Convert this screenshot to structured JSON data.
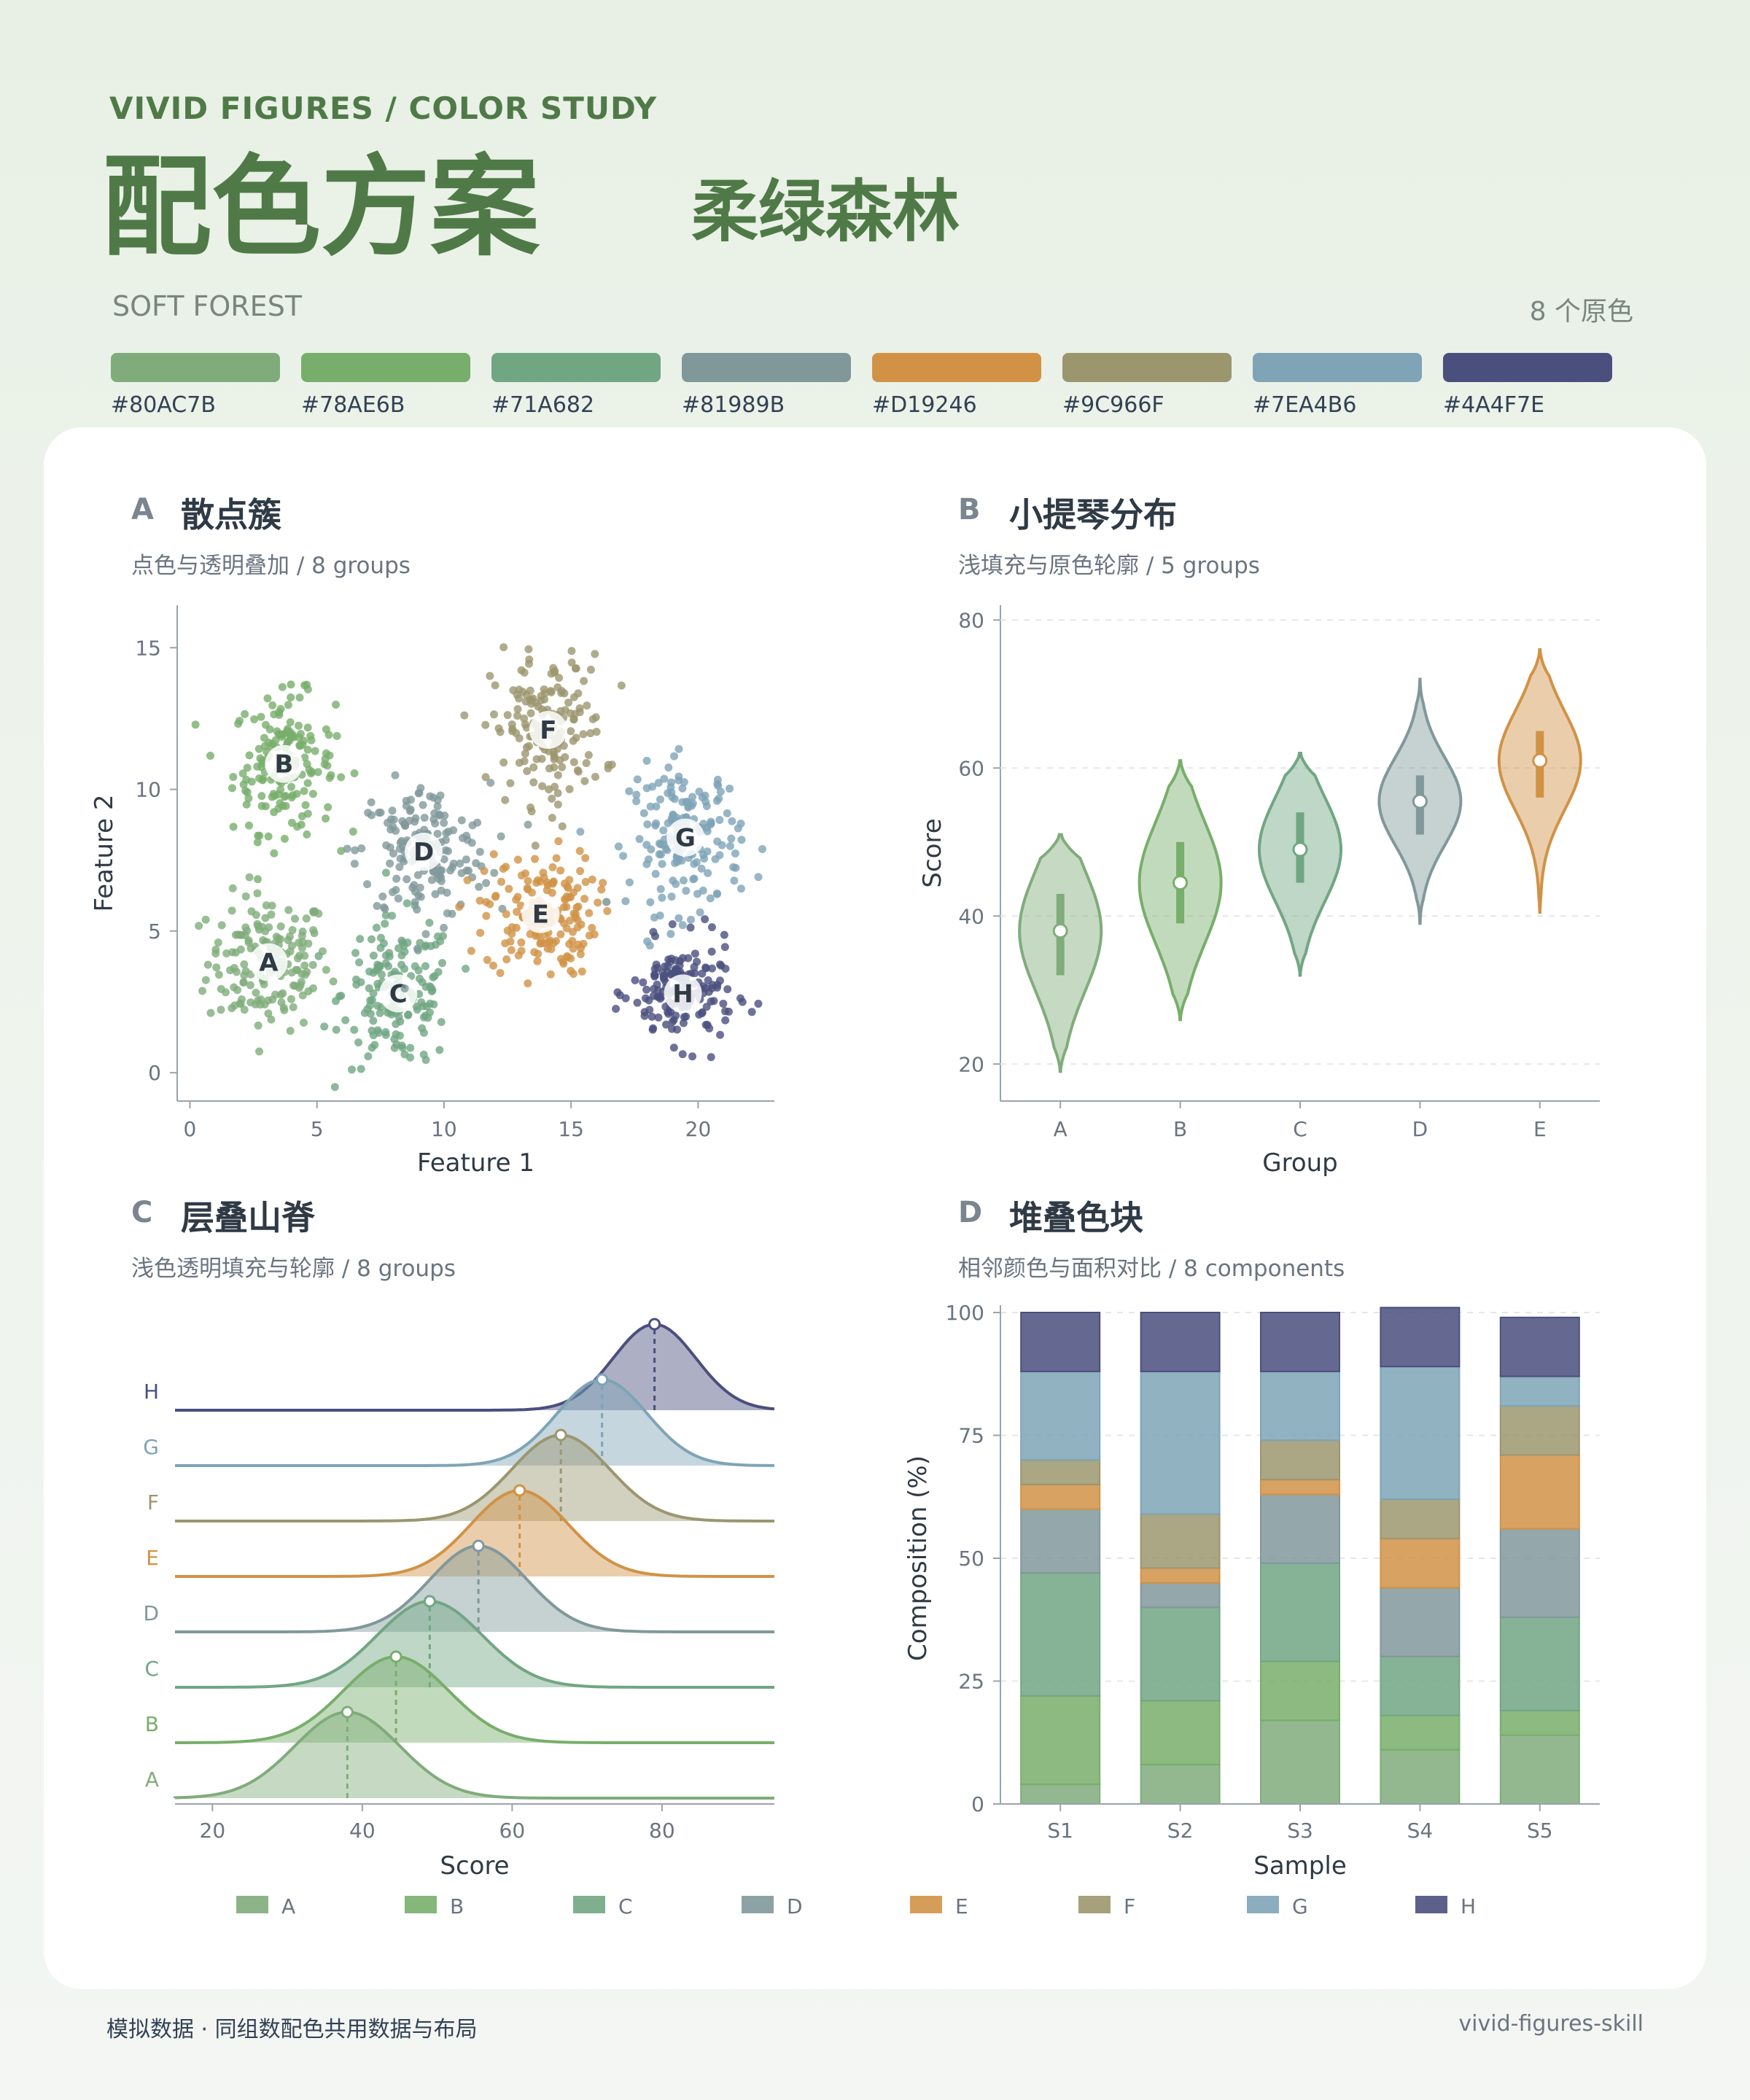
{
  "header": {
    "eyebrow": "VIVID FIGURES  /  COLOR STUDY",
    "title": "配色方案",
    "subtitle_cn": "柔绿森林",
    "subtitle_en": "SOFT FOREST",
    "count_note": "8 个原色"
  },
  "palette": [
    {
      "hex": "#80AC7B",
      "label": "#80AC7B"
    },
    {
      "hex": "#78AE6B",
      "label": "#78AE6B"
    },
    {
      "hex": "#71A682",
      "label": "#71A682"
    },
    {
      "hex": "#81989B",
      "label": "#81989B"
    },
    {
      "hex": "#D19246",
      "label": "#D19246"
    },
    {
      "hex": "#9C966F",
      "label": "#9C966F"
    },
    {
      "hex": "#7EA4B6",
      "label": "#7EA4B6"
    },
    {
      "hex": "#4A4F7E",
      "label": "#4A4F7E"
    }
  ],
  "panels": {
    "A": {
      "letter": "A",
      "title": "散点簇",
      "subtitle": "点色与透明叠加 / 8 groups"
    },
    "B": {
      "letter": "B",
      "title": "小提琴分布",
      "subtitle": "浅填充与原色轮廓 / 5 groups"
    },
    "C": {
      "letter": "C",
      "title": "层叠山脊",
      "subtitle": "浅色透明填充与轮廓 / 8 groups"
    },
    "D": {
      "letter": "D",
      "title": "堆叠色块",
      "subtitle": "相邻颜色与面积对比 / 8 components"
    }
  },
  "chart_data": [
    {
      "id": "A",
      "type": "scatter",
      "xlabel": "Feature 1",
      "ylabel": "Feature 2",
      "xlim": [
        -0.5,
        23
      ],
      "ylim": [
        -1,
        16.5
      ],
      "xticks": [
        0,
        5,
        10,
        15,
        20
      ],
      "yticks": [
        0,
        5,
        10,
        15
      ],
      "clusters": [
        {
          "name": "A",
          "cx": 3.1,
          "cy": 3.9,
          "sx": 1.2,
          "sy": 1.2,
          "color": "#80AC7B"
        },
        {
          "name": "B",
          "cx": 3.7,
          "cy": 10.9,
          "sx": 1.0,
          "sy": 1.2,
          "color": "#78AE6B"
        },
        {
          "name": "C",
          "cx": 8.2,
          "cy": 2.8,
          "sx": 1.1,
          "sy": 1.3,
          "color": "#71A682"
        },
        {
          "name": "D",
          "cx": 9.2,
          "cy": 7.8,
          "sx": 1.3,
          "sy": 1.2,
          "color": "#81989B"
        },
        {
          "name": "E",
          "cx": 13.8,
          "cy": 5.6,
          "sx": 1.1,
          "sy": 1.1,
          "color": "#D19246"
        },
        {
          "name": "F",
          "cx": 14.1,
          "cy": 12.1,
          "sx": 1.1,
          "sy": 1.3,
          "color": "#9C966F"
        },
        {
          "name": "G",
          "cx": 19.5,
          "cy": 8.3,
          "sx": 1.1,
          "sy": 1.3,
          "color": "#7EA4B6"
        },
        {
          "name": "H",
          "cx": 19.4,
          "cy": 2.8,
          "sx": 1.0,
          "sy": 0.9,
          "color": "#4A4F7E"
        }
      ]
    },
    {
      "id": "B",
      "type": "violin",
      "xlabel": "Group",
      "ylabel": "Score",
      "ylim": [
        15,
        82
      ],
      "yticks": [
        20,
        40,
        60,
        80
      ],
      "groups": [
        {
          "name": "A",
          "median": 38,
          "q1": 32,
          "q3": 43,
          "min": 19,
          "max": 51,
          "color": "#80AC7B"
        },
        {
          "name": "B",
          "median": 44.5,
          "q1": 39,
          "q3": 50,
          "min": 26,
          "max": 61,
          "color": "#78AE6B"
        },
        {
          "name": "C",
          "median": 49,
          "q1": 44.5,
          "q3": 54,
          "min": 32,
          "max": 62,
          "color": "#71A682"
        },
        {
          "name": "D",
          "median": 55.5,
          "q1": 51,
          "q3": 59,
          "min": 39,
          "max": 72,
          "color": "#81989B"
        },
        {
          "name": "E",
          "median": 61,
          "q1": 56,
          "q3": 65,
          "min": 40.5,
          "max": 76,
          "color": "#D19246"
        }
      ]
    },
    {
      "id": "C",
      "type": "ridgeline",
      "xlabel": "Score",
      "xlim": [
        15,
        95
      ],
      "xticks": [
        20,
        40,
        60,
        80
      ],
      "series": [
        {
          "name": "A",
          "mean": 38,
          "sd": 7,
          "color": "#80AC7B"
        },
        {
          "name": "B",
          "mean": 44.5,
          "sd": 7,
          "color": "#78AE6B"
        },
        {
          "name": "C",
          "mean": 49,
          "sd": 7,
          "color": "#71A682"
        },
        {
          "name": "D",
          "mean": 55.5,
          "sd": 6.5,
          "color": "#81989B"
        },
        {
          "name": "E",
          "mean": 61,
          "sd": 6.5,
          "color": "#D19246"
        },
        {
          "name": "F",
          "mean": 66.5,
          "sd": 6.5,
          "color": "#9C966F"
        },
        {
          "name": "G",
          "mean": 72,
          "sd": 6,
          "color": "#7EA4B6"
        },
        {
          "name": "H",
          "mean": 79,
          "sd": 5.5,
          "color": "#4A4F7E"
        }
      ]
    },
    {
      "id": "D",
      "type": "bar",
      "stacked": true,
      "xlabel": "Sample",
      "ylabel": "Composition (%)",
      "ylim": [
        0,
        100
      ],
      "yticks": [
        0,
        25,
        50,
        75,
        100
      ],
      "categories": [
        "S1",
        "S2",
        "S3",
        "S4",
        "S5"
      ],
      "series": [
        {
          "name": "A",
          "color": "#80AC7B",
          "values": [
            4,
            8,
            17,
            11,
            14
          ]
        },
        {
          "name": "B",
          "color": "#78AE6B",
          "values": [
            18,
            13,
            12,
            7,
            5
          ]
        },
        {
          "name": "C",
          "color": "#71A682",
          "values": [
            25,
            19,
            20,
            12,
            19
          ]
        },
        {
          "name": "D",
          "color": "#81989B",
          "values": [
            13,
            5,
            14,
            14,
            18
          ]
        },
        {
          "name": "E",
          "color": "#D19246",
          "values": [
            5,
            3,
            3,
            10,
            15
          ]
        },
        {
          "name": "F",
          "color": "#9C966F",
          "values": [
            5,
            11,
            8,
            8,
            10
          ]
        },
        {
          "name": "G",
          "color": "#7EA4B6",
          "values": [
            18,
            29,
            14,
            27,
            6
          ]
        },
        {
          "name": "H",
          "color": "#4A4F7E",
          "values": [
            12,
            12,
            12,
            12,
            12
          ]
        }
      ]
    }
  ],
  "legend": [
    "A",
    "B",
    "C",
    "D",
    "E",
    "F",
    "G",
    "H"
  ],
  "footer": {
    "left": "模拟数据 · 同组数配色共用数据与布局",
    "right": "vivid-figures-skill"
  }
}
